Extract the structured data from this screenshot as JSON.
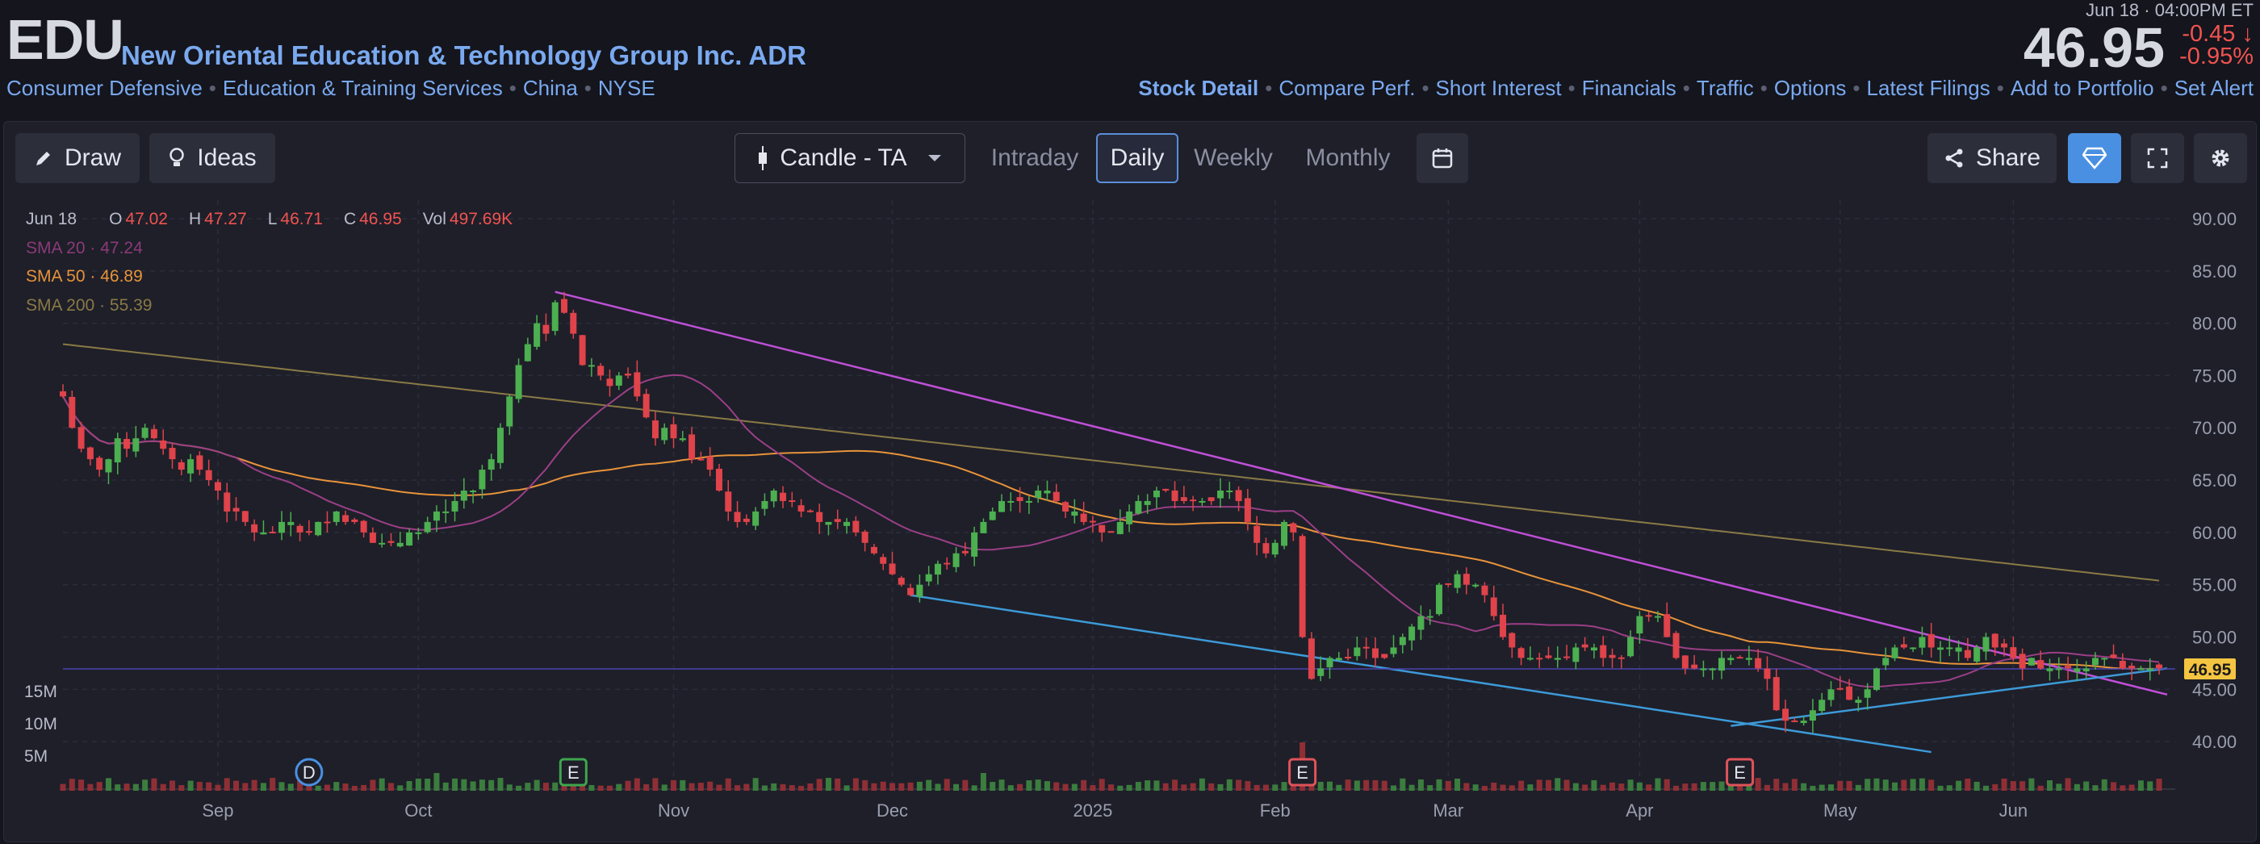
{
  "header": {
    "ticker": "EDU",
    "company": "New Oriental Education & Technology Group Inc. ADR",
    "tags": [
      "Consumer Defensive",
      "Education & Training Services",
      "China",
      "NYSE"
    ],
    "timestamp": "Jun 18 · 04:00PM ET",
    "price": "46.95",
    "change": "-0.45",
    "change_pct": "-0.95%",
    "links": [
      "Stock Detail",
      "Compare Perf.",
      "Short Interest",
      "Financials",
      "Traffic",
      "Options",
      "Latest Filings",
      "Add to Portfolio",
      "Set Alert"
    ]
  },
  "toolbar": {
    "draw_label": "Draw",
    "ideas_label": "Ideas",
    "chart_type": "Candle - TA",
    "tabs": [
      "Intraday",
      "Daily",
      "Weekly",
      "Monthly"
    ],
    "active_tab": "Daily",
    "share_label": "Share"
  },
  "legend": {
    "date": "Jun 18",
    "o_label": "O",
    "o": "47.02",
    "h_label": "H",
    "h": "47.27",
    "l_label": "L",
    "l": "46.71",
    "c_label": "C",
    "c": "46.95",
    "vol_label": "Vol",
    "vol": "497.69K",
    "sma20_label": "SMA 20",
    "sma20": "47.24",
    "sma50_label": "SMA 50",
    "sma50": "46.89",
    "sma200_label": "SMA 200",
    "sma200": "55.39",
    "sep": "·"
  },
  "colors": {
    "up": "#4caf50",
    "down": "#e0434a",
    "sma20": "#9b3f86",
    "sma50": "#e8933a",
    "sma200": "#8a7a45",
    "trend_down": "#c04fd8",
    "trend_support": "#3d9ad8",
    "price_line": "#4a45b0",
    "price_badge": "#f5c542",
    "accent": "#4a90e2"
  },
  "chart_data": {
    "type": "candlestick",
    "title": "",
    "price_axis": {
      "ticks": [
        "90.00",
        "85.00",
        "80.00",
        "75.00",
        "70.00",
        "65.00",
        "60.00",
        "55.00",
        "50.00",
        "45.00",
        "40.00"
      ],
      "ylim": [
        37,
        91
      ]
    },
    "volume_axis": {
      "ticks": [
        "15M",
        "10M",
        "5M"
      ]
    },
    "x_ticks": [
      "Sep",
      "Oct",
      "Nov",
      "Dec",
      "2025",
      "Feb",
      "Mar",
      "Apr",
      "May",
      "Jun"
    ],
    "last_price_label": "46.95",
    "events": [
      {
        "label": "D",
        "month": "Sep",
        "day": 13
      },
      {
        "label": "E",
        "month": "Oct",
        "day": 24
      },
      {
        "label": "E",
        "month": "Jan",
        "day": 28
      },
      {
        "label": "E",
        "month": "Apr",
        "day": 22
      }
    ],
    "closes": [
      73,
      70,
      68,
      67,
      66,
      67,
      69,
      68,
      69,
      70,
      69,
      68,
      67,
      66,
      67,
      66,
      65,
      64,
      62,
      62,
      61,
      60,
      60,
      60,
      61,
      61,
      60,
      60,
      61,
      61,
      62,
      61,
      61,
      60,
      59,
      59,
      59,
      59,
      60,
      60,
      61,
      62,
      62,
      63,
      64,
      64,
      66,
      67,
      70,
      73,
      76,
      78,
      80,
      79,
      82,
      81,
      79,
      76,
      76,
      75,
      74,
      75,
      75,
      73,
      71,
      69,
      70,
      69,
      69,
      67,
      67,
      66,
      64,
      62,
      61,
      61,
      62,
      63,
      64,
      63,
      63,
      62,
      62,
      61,
      61,
      61,
      61,
      60,
      59,
      58,
      57,
      56,
      55,
      54,
      55,
      56,
      57,
      57,
      58,
      58,
      60,
      61,
      62,
      63,
      63,
      63,
      63,
      64,
      64,
      63,
      62,
      62,
      61,
      61,
      60,
      60,
      61,
      62,
      63,
      63,
      64,
      64,
      63,
      63,
      63,
      63,
      63,
      64,
      64,
      63,
      61,
      59,
      58,
      59,
      61,
      60,
      50,
      46,
      47,
      48,
      48,
      48,
      49,
      49,
      48,
      48,
      49,
      50,
      51,
      52,
      52,
      55,
      55,
      56,
      55,
      55,
      54,
      52,
      50,
      49,
      48,
      48,
      48,
      48,
      48,
      48,
      49,
      49,
      49,
      48,
      48,
      48,
      50,
      52,
      52,
      52,
      50,
      48,
      47,
      47,
      47,
      47,
      48,
      48,
      48,
      48,
      47,
      46,
      43,
      42,
      42,
      42,
      43,
      44,
      45,
      45,
      44,
      44,
      45,
      47,
      48,
      49,
      49,
      49,
      50,
      49,
      49,
      49,
      49,
      48,
      49,
      50,
      49,
      49,
      48,
      47,
      48,
      47,
      47,
      47,
      47,
      47,
      47,
      48,
      48,
      48,
      47,
      47,
      47,
      47,
      47
    ],
    "ohlc": {
      "date": "Jun 18",
      "open": 47.02,
      "high": 47.27,
      "low": 46.71,
      "close": 46.95,
      "volume": "497.69K"
    },
    "sma": [
      {
        "name": "SMA 20",
        "value": 47.24
      },
      {
        "name": "SMA 50",
        "value": 46.89
      },
      {
        "name": "SMA 200",
        "value": 55.39
      }
    ]
  }
}
